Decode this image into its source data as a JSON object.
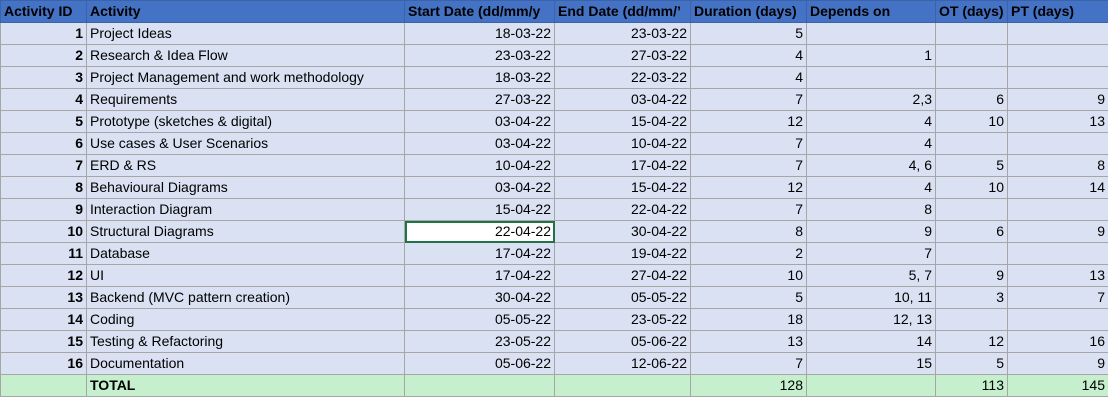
{
  "headers": [
    "Activity ID",
    "Activity",
    "Start Date (dd/mm/y",
    "End Date (dd/mm/’",
    "Duration (days)",
    "Depends on",
    "OT (days)",
    "PT (days)"
  ],
  "rows": [
    [
      "1",
      "Project Ideas",
      "18-03-22",
      "23-03-22",
      "5",
      "",
      "",
      ""
    ],
    [
      "2",
      "Research & Idea Flow",
      "23-03-22",
      "27-03-22",
      "4",
      "1",
      "",
      ""
    ],
    [
      "3",
      "Project Management and work methodology",
      "18-03-22",
      "22-03-22",
      "4",
      "",
      "",
      ""
    ],
    [
      "4",
      "Requirements",
      "27-03-22",
      "03-04-22",
      "7",
      "2,3",
      "6",
      "9"
    ],
    [
      "5",
      "Prototype (sketches & digital)",
      "03-04-22",
      "15-04-22",
      "12",
      "4",
      "10",
      "13"
    ],
    [
      "6",
      "Use cases & User Scenarios",
      "03-04-22",
      "10-04-22",
      "7",
      "4",
      "",
      ""
    ],
    [
      "7",
      "ERD & RS",
      "10-04-22",
      "17-04-22",
      "7",
      "4, 6",
      "5",
      "8"
    ],
    [
      "8",
      "Behavioural Diagrams",
      "03-04-22",
      "15-04-22",
      "12",
      "4",
      "10",
      "14"
    ],
    [
      "9",
      "Interaction Diagram",
      "15-04-22",
      "22-04-22",
      "7",
      "8",
      "",
      ""
    ],
    [
      "10",
      "Structural Diagrams",
      "22-04-22",
      "30-04-22",
      "8",
      "9",
      "6",
      "9"
    ],
    [
      "11",
      "Database",
      "17-04-22",
      "19-04-22",
      "2",
      "7",
      "",
      ""
    ],
    [
      "12",
      "UI",
      "17-04-22",
      "27-04-22",
      "10",
      "5, 7",
      "9",
      "13"
    ],
    [
      "13",
      "Backend (MVC pattern creation)",
      "30-04-22",
      "05-05-22",
      "5",
      "10, 11",
      "3",
      "7"
    ],
    [
      "14",
      "Coding",
      "05-05-22",
      "23-05-22",
      "18",
      "12, 13",
      "",
      ""
    ],
    [
      "15",
      "Testing & Refactoring",
      "23-05-22",
      "05-06-22",
      "13",
      "14",
      "12",
      "16"
    ],
    [
      "16",
      "Documentation",
      "05-06-22",
      "12-06-22",
      "7",
      "15",
      "5",
      "9"
    ]
  ],
  "total": {
    "label": "TOTAL",
    "duration": "128",
    "ot": "113",
    "pt": "145"
  }
}
